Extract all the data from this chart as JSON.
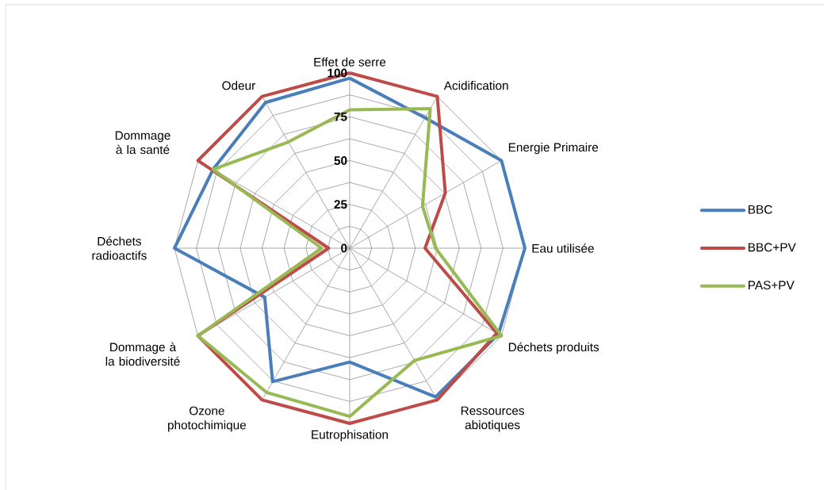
{
  "chart_data": {
    "type": "radar",
    "categories": [
      "Effet de serre",
      "Acidification",
      "Energie Primaire",
      "Eau utilisée",
      "Déchets produits",
      "Ressources abiotiques",
      "Eutrophisation",
      "Ozone photochimique",
      "Dommage à la biodiversité",
      "Déchets radioactifs",
      "Dommage à la santé",
      "Odeur"
    ],
    "series": [
      {
        "name": "BBC",
        "color": "#4a7ebb",
        "values": [
          97,
          86,
          100,
          100,
          98,
          98,
          65,
          88,
          56,
          100,
          90,
          96
        ]
      },
      {
        "name": "BBC+PV",
        "color": "#be4b48",
        "values": [
          100,
          100,
          63,
          43,
          97,
          100,
          100,
          100,
          100,
          12,
          100,
          100
        ]
      },
      {
        "name": "PAS+PV",
        "color": "#98b954",
        "values": [
          79,
          92,
          48,
          49,
          100,
          74,
          96,
          95,
          100,
          16,
          90,
          70
        ]
      }
    ],
    "ylim": [
      0,
      100
    ],
    "yticks": [
      0,
      25,
      50,
      75,
      100
    ],
    "grid": true,
    "legend": "right"
  }
}
